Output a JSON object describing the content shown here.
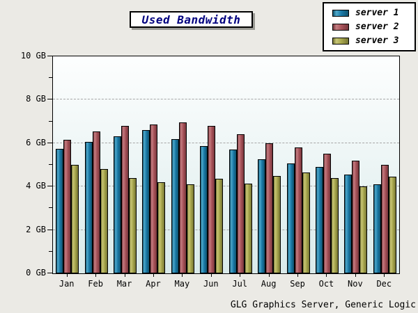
{
  "title": "Used Bandwidth",
  "footer": "GLG Graphics Server, Generic Logic",
  "chart_data": {
    "type": "bar",
    "title": "Used Bandwidth",
    "categories": [
      "Jan",
      "Feb",
      "Mar",
      "Apr",
      "May",
      "Jun",
      "Jul",
      "Aug",
      "Sep",
      "Oct",
      "Nov",
      "Dec"
    ],
    "unit": "GB",
    "series": [
      {
        "name": "server 1",
        "color": "#1a7aa8",
        "color_light": "#4fa9cb",
        "color_dark": "#11536f",
        "values": [
          5.75,
          6.05,
          6.3,
          6.6,
          6.2,
          5.85,
          5.7,
          5.25,
          5.05,
          4.9,
          4.55,
          4.1
        ]
      },
      {
        "name": "server 2",
        "color": "#a9535a",
        "color_light": "#c47d82",
        "color_dark": "#76363c",
        "values": [
          6.15,
          6.55,
          6.8,
          6.85,
          6.95,
          6.8,
          6.4,
          6.0,
          5.8,
          5.5,
          5.2,
          5.0
        ]
      },
      {
        "name": "server 3",
        "color": "#a8a74d",
        "color_light": "#c8c676",
        "color_dark": "#767534",
        "values": [
          5.0,
          4.8,
          4.4,
          4.2,
          4.1,
          4.35,
          4.15,
          4.5,
          4.65,
          4.4,
          4.0,
          4.45
        ]
      }
    ],
    "ylim": [
      0,
      10
    ],
    "ytick_values": [
      0,
      2,
      4,
      6,
      8,
      10
    ],
    "ytick_labels": [
      "0 GB",
      "2 GB",
      "4 GB",
      "6 GB",
      "8 GB",
      "10 GB"
    ],
    "minor_tick_values": [
      1,
      3,
      5,
      7,
      9
    ],
    "grid_values": [
      2,
      4,
      6,
      8
    ],
    "grid_style": "dashed-horizontal",
    "legend_position": "top-right"
  }
}
